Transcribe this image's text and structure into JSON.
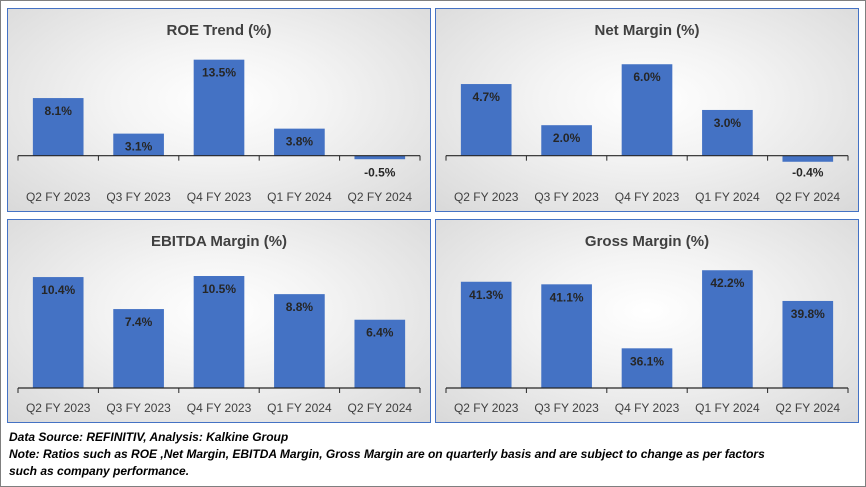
{
  "colors": {
    "bar": "#4472c4",
    "axis": "#262626",
    "panel_border": "#4472c4"
  },
  "chart_data": [
    {
      "type": "bar",
      "title": "ROE Trend (%)",
      "categories": [
        "Q2 FY 2023",
        "Q3 FY 2023",
        "Q4 FY 2023",
        "Q1 FY 2024",
        "Q2 FY 2024"
      ],
      "values": [
        8.1,
        3.1,
        13.5,
        3.8,
        -0.5
      ],
      "value_labels": [
        "8.1%",
        "3.1%",
        "13.5%",
        "3.8%",
        "-0.5%"
      ],
      "ylim": [
        -3,
        15
      ],
      "grid": false
    },
    {
      "type": "bar",
      "title": "Net Margin (%)",
      "categories": [
        "Q2 FY 2023",
        "Q3 FY 2023",
        "Q4 FY 2023",
        "Q1 FY 2024",
        "Q2 FY 2024"
      ],
      "values": [
        4.7,
        2.0,
        6.0,
        3.0,
        -0.4
      ],
      "value_labels": [
        "4.7%",
        "2.0%",
        "6.0%",
        "3.0%",
        "-0.4%"
      ],
      "ylim": [
        -1.4,
        7
      ],
      "grid": false
    },
    {
      "type": "bar",
      "title": "EBITDA Margin (%)",
      "categories": [
        "Q2 FY 2023",
        "Q3 FY 2023",
        "Q4 FY 2023",
        "Q1 FY 2024",
        "Q2 FY 2024"
      ],
      "values": [
        10.4,
        7.4,
        10.5,
        8.8,
        6.4
      ],
      "value_labels": [
        "10.4%",
        "7.4%",
        "10.5%",
        "8.8%",
        "6.4%"
      ],
      "ylim": [
        0,
        12
      ],
      "grid": false
    },
    {
      "type": "bar",
      "title": "Gross Margin (%)",
      "categories": [
        "Q2 FY 2023",
        "Q3 FY 2023",
        "Q4 FY 2023",
        "Q1 FY 2024",
        "Q2 FY 2024"
      ],
      "values": [
        41.3,
        41.1,
        36.1,
        42.2,
        39.8
      ],
      "value_labels": [
        "41.3%",
        "41.1%",
        "36.1%",
        "42.2%",
        "39.8%"
      ],
      "ylim": [
        33,
        43
      ],
      "grid": false
    }
  ],
  "footer": {
    "source": "Data Source: REFINITIV, Analysis: Kalkine Group",
    "note_line1": "Note: Ratios such as ROE ,Net Margin, EBITDA Margin, Gross Margin are on quarterly basis and are subject to change as per factors",
    "note_line2": "such as company performance."
  }
}
